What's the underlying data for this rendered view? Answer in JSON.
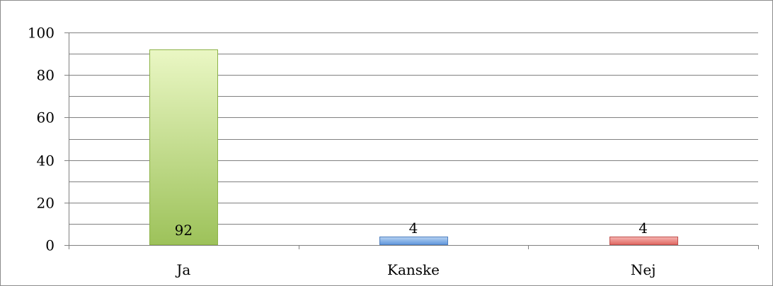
{
  "chart_data": {
    "type": "bar",
    "title": "",
    "xlabel": "",
    "ylabel": "",
    "categories": [
      "Ja",
      "Kanske",
      "Nej"
    ],
    "values": [
      92,
      4,
      4
    ],
    "data_labels": [
      "92",
      "4",
      "4"
    ],
    "ylim": [
      0,
      100
    ],
    "y_ticks": [
      0,
      20,
      40,
      60,
      80,
      100
    ],
    "y_tick_labels": [
      "0",
      "20",
      "40",
      "60",
      "80",
      "100"
    ],
    "minor_gridline_step": 10,
    "grid": true,
    "legend": "none",
    "colors": {
      "Ja": {
        "fill_top": "#eaf7c4",
        "fill_bottom": "#9dc25a",
        "stroke": "#8db347"
      },
      "Kanske": {
        "fill_top": "#b7d3f2",
        "fill_bottom": "#5f96dc",
        "stroke": "#4f7fbf"
      },
      "Nej": {
        "fill_top": "#f6b5b2",
        "fill_bottom": "#e06660",
        "stroke": "#c0504d"
      }
    },
    "gridline_color": "#808080",
    "axis_color": "#808080"
  }
}
